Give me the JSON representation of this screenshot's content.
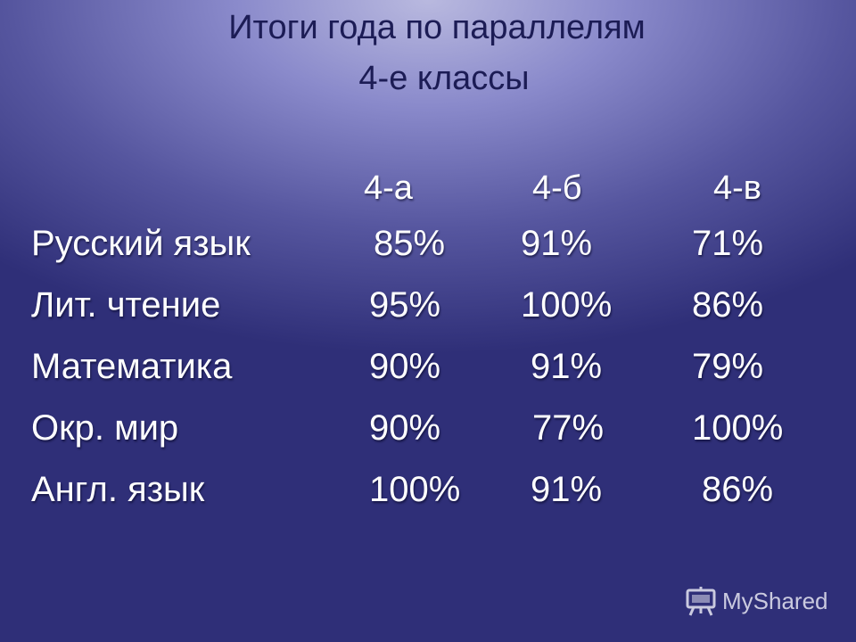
{
  "title": {
    "line1": "Итоги года по параллелям",
    "line2": "4-е классы"
  },
  "table": {
    "headers": [
      "4-а",
      "4-б",
      "4-в"
    ],
    "rows": [
      {
        "subject": "Русский язык",
        "values": [
          "85%",
          "91%",
          "71%"
        ]
      },
      {
        "subject": "Лит. чтение",
        "values": [
          "95%",
          "100%",
          "86%"
        ]
      },
      {
        "subject": "Математика",
        "values": [
          "90%",
          "91%",
          "79%"
        ]
      },
      {
        "subject": "Окр. мир",
        "values": [
          "90%",
          "77%",
          "100%"
        ]
      },
      {
        "subject": "Англ. язык",
        "values": [
          "100%",
          "91%",
          "86%"
        ]
      }
    ]
  },
  "watermark": {
    "text": "MyShared",
    "icon": "presentation-board-icon"
  }
}
